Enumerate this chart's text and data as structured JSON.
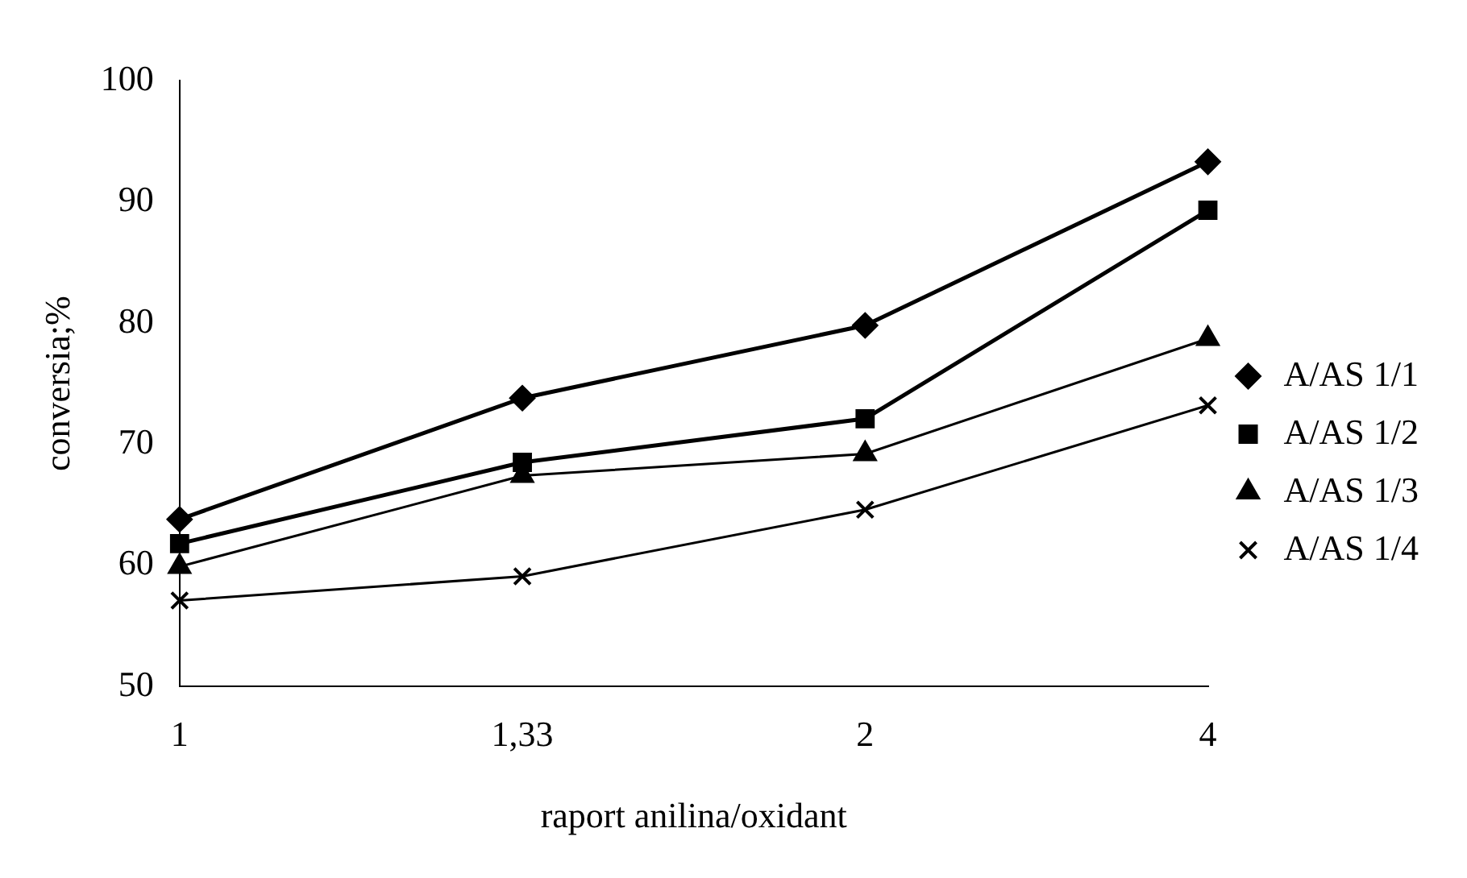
{
  "chart_data": {
    "type": "line",
    "xlabel": "raport anilina/oxidant",
    "ylabel": "conversia;%",
    "categories": [
      "1",
      "1,33",
      "2",
      "4"
    ],
    "series": [
      {
        "name": "A/AS 1/1",
        "color": "#000000",
        "marker": "diamond",
        "values": [
          63.8,
          73.8,
          79.8,
          93.3
        ]
      },
      {
        "name": "A/AS 1/2",
        "color": "#000000",
        "marker": "square",
        "values": [
          61.8,
          68.5,
          72.1,
          89.3
        ]
      },
      {
        "name": "A/AS 1/3",
        "color": "#000000",
        "marker": "triangle",
        "values": [
          59.9,
          67.4,
          69.2,
          78.7
        ]
      },
      {
        "name": "A/AS 1/4",
        "color": "#000000",
        "marker": "cross",
        "values": [
          57.1,
          59.1,
          64.6,
          73.2
        ]
      }
    ],
    "ylim": [
      50,
      100
    ],
    "yticks": [
      50,
      60,
      70,
      80,
      90,
      100
    ],
    "grid": false,
    "legend": "right",
    "line_style": "solid"
  }
}
